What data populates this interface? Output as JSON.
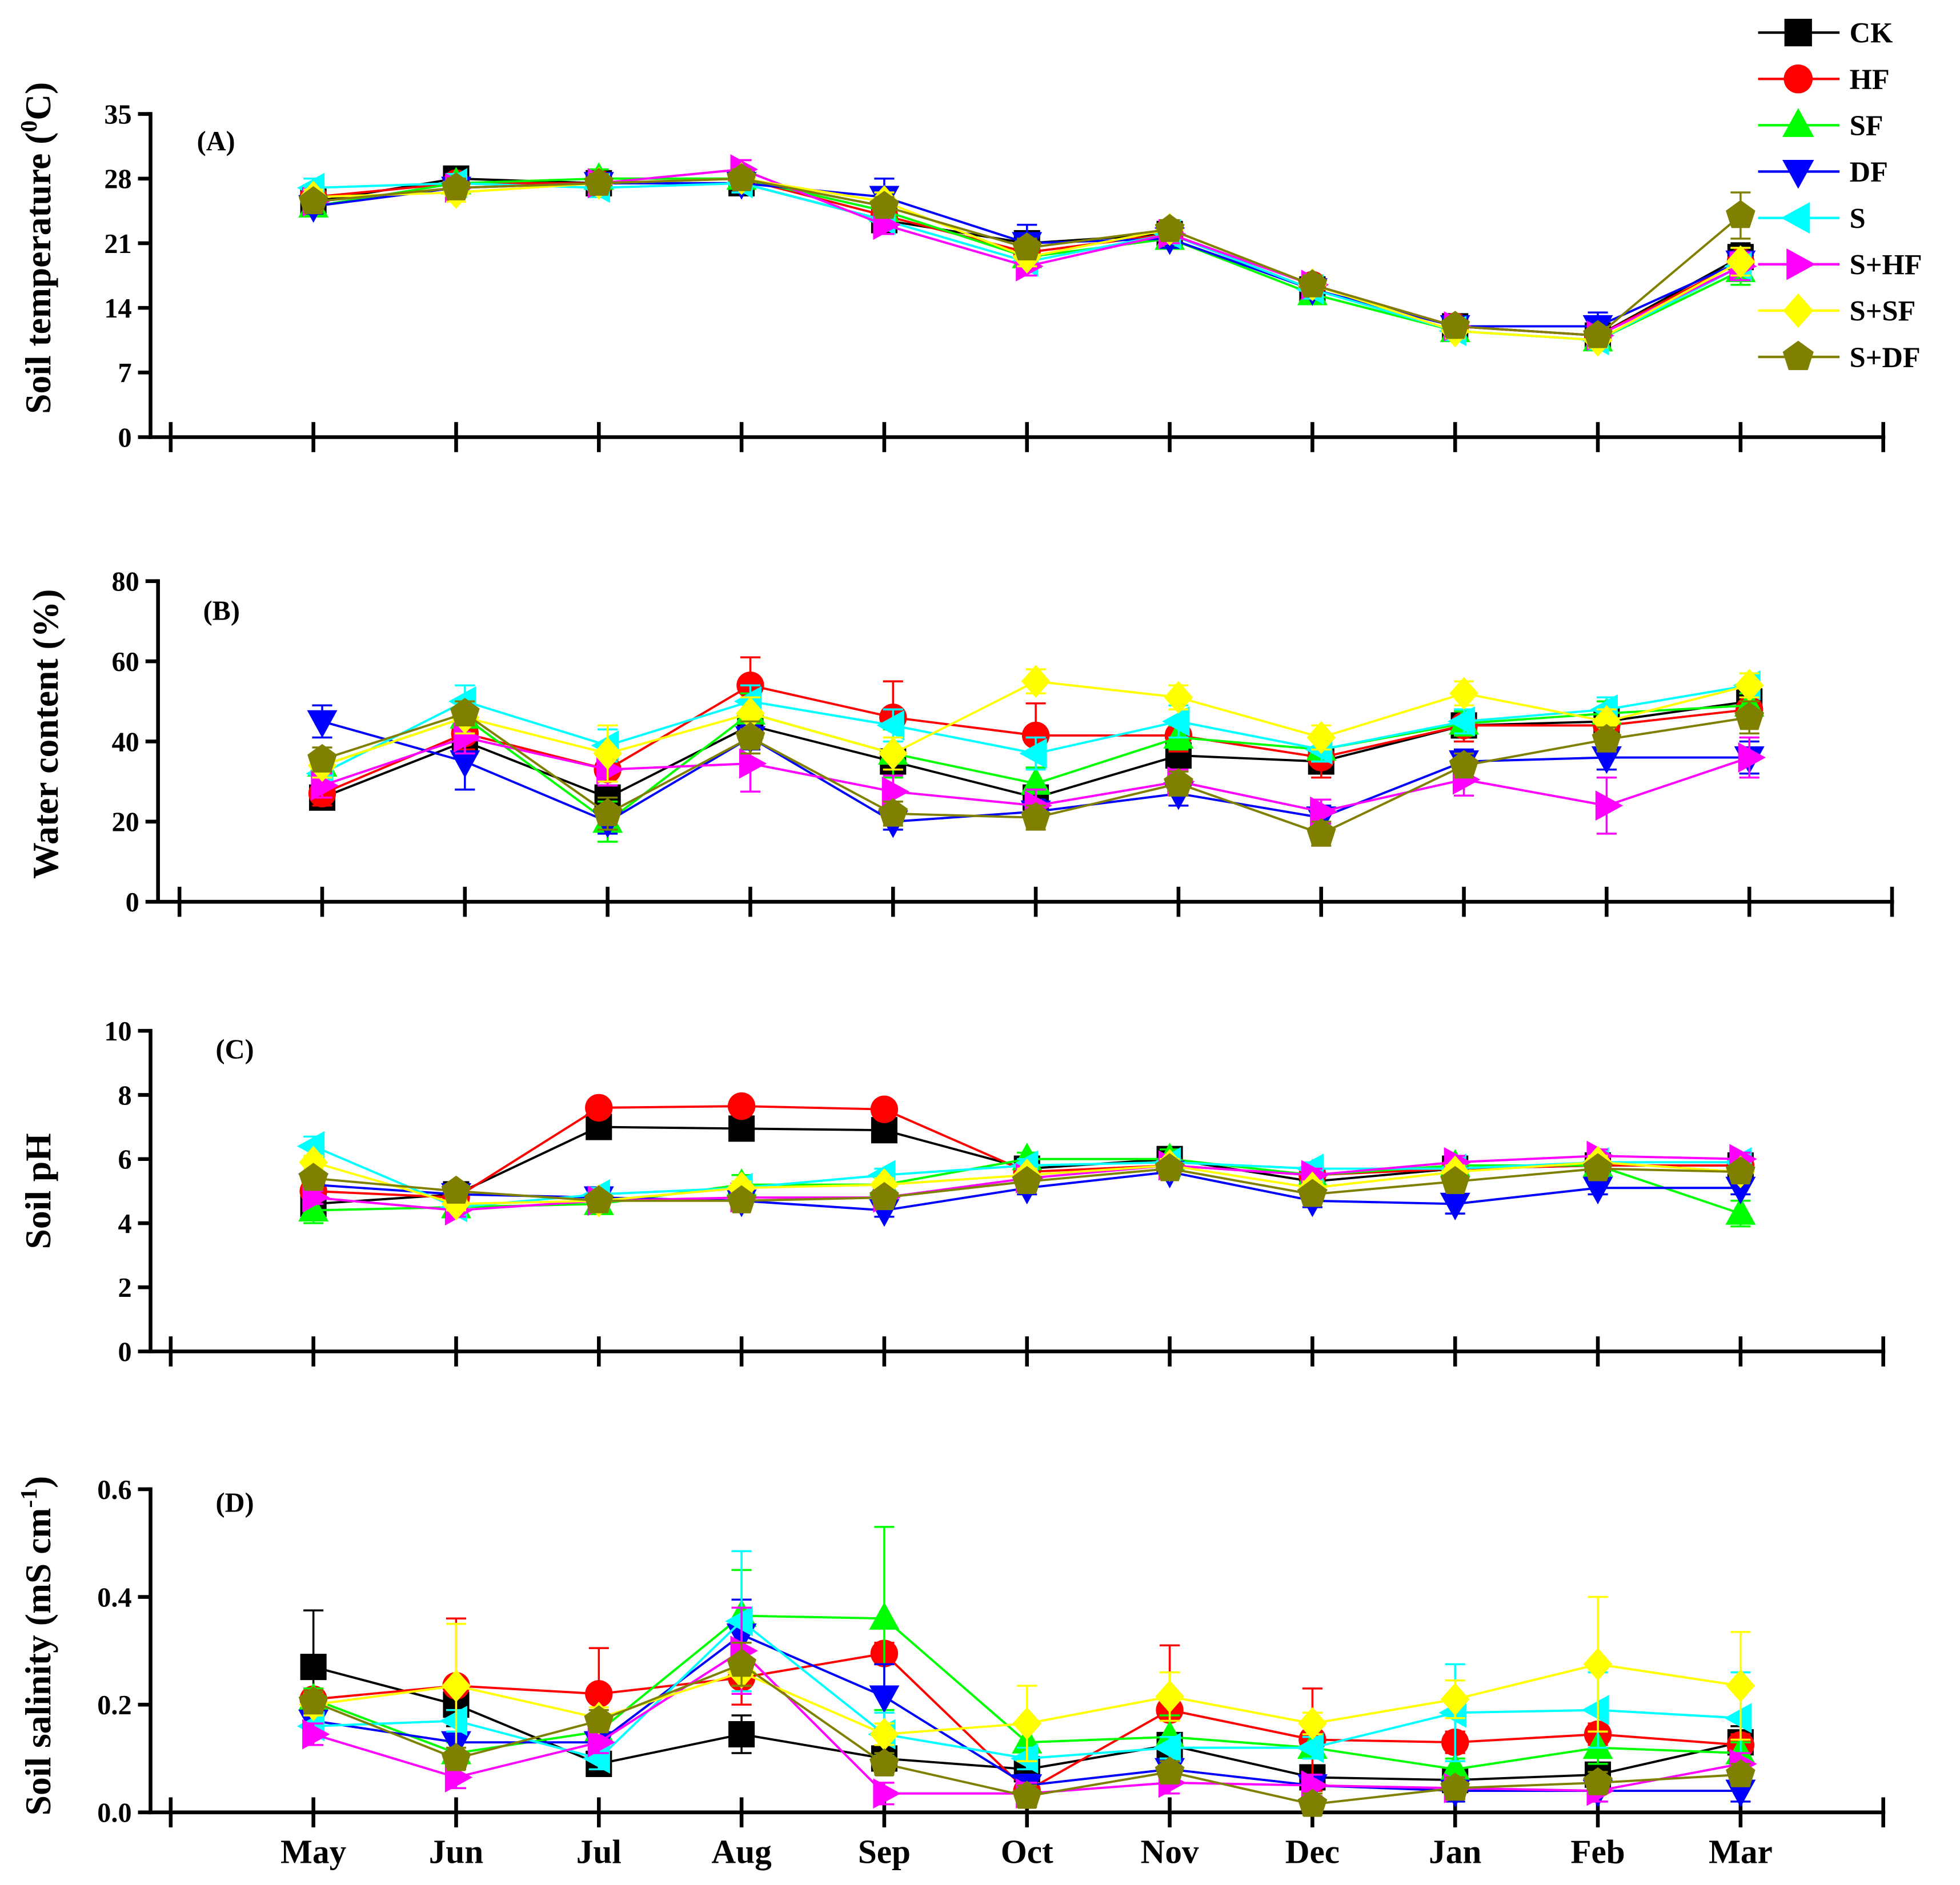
{
  "legend": {
    "entries": [
      {
        "name": "CK",
        "color": "#000000",
        "marker": "square"
      },
      {
        "name": "HF",
        "color": "#ff0000",
        "marker": "circle"
      },
      {
        "name": "SF",
        "color": "#00ff00",
        "marker": "triangle-up"
      },
      {
        "name": "DF",
        "color": "#0000ff",
        "marker": "triangle-down"
      },
      {
        "name": "S",
        "color": "#00ffff",
        "marker": "triangle-left"
      },
      {
        "name": "S+HF",
        "color": "#ff00ff",
        "marker": "triangle-right"
      },
      {
        "name": "S+SF",
        "color": "#ffff00",
        "marker": "diamond"
      },
      {
        "name": "S+DF",
        "color": "#808000",
        "marker": "pentagon"
      }
    ]
  },
  "chart_data": [
    {
      "type": "line",
      "panel_label": "(A)",
      "xlabel": "",
      "ylabel": [
        {
          "text": "Soil temperature ("
        },
        {
          "text": "0",
          "sup": true
        },
        {
          "text": "C)"
        }
      ],
      "ylim": [
        0,
        35
      ],
      "yticks": [
        0,
        7,
        14,
        21,
        28,
        35
      ],
      "ytick_labels": [
        "0",
        "7",
        "14",
        "21",
        "28",
        "35"
      ],
      "categories": [
        "May",
        "Jun",
        "Jul",
        "Aug",
        "Sep",
        "Oct",
        "Nov",
        "Dec",
        "Jan",
        "Feb",
        "Mar"
      ],
      "series": [
        {
          "name": "CK",
          "values": [
            25.5,
            28,
            27.5,
            27.5,
            23.5,
            21,
            22,
            16,
            12,
            11,
            19.5
          ],
          "errors": [
            0.8,
            1,
            1,
            1,
            1,
            1,
            0.8,
            1,
            0.8,
            1,
            1.5
          ]
        },
        {
          "name": "HF",
          "values": [
            26,
            27.5,
            27.5,
            28,
            24,
            20,
            22,
            16.5,
            12,
            11,
            19
          ],
          "errors": [
            0.8,
            0.8,
            1,
            1,
            1,
            1,
            0.8,
            1,
            0.8,
            0.8,
            1.5
          ]
        },
        {
          "name": "SF",
          "values": [
            25,
            27.5,
            28,
            28,
            24.5,
            19.5,
            21.5,
            15.5,
            11.5,
            10.5,
            18
          ],
          "errors": [
            0.8,
            0.8,
            1,
            1,
            1,
            1,
            0.8,
            1,
            0.8,
            0.8,
            1.5
          ]
        },
        {
          "name": "DF",
          "values": [
            25,
            27,
            27.5,
            27.5,
            26,
            21,
            21.5,
            16,
            12,
            12,
            19
          ],
          "errors": [
            0.8,
            0.8,
            1,
            1,
            2,
            2,
            1,
            1,
            0.8,
            1.5,
            1.5
          ]
        },
        {
          "name": "S",
          "values": [
            27,
            27.5,
            27,
            27.5,
            23.5,
            19,
            22,
            16,
            11.5,
            10.5,
            18.5
          ],
          "errors": [
            1,
            1,
            1,
            1,
            1,
            1,
            1,
            1,
            1,
            1,
            1.5
          ]
        },
        {
          "name": "S+HF",
          "values": [
            25.5,
            27,
            27.5,
            29,
            23,
            18.5,
            22,
            16.5,
            12,
            11,
            18.5
          ],
          "errors": [
            0.8,
            0.8,
            1,
            1,
            1,
            1,
            1,
            1,
            0.8,
            0.8,
            1.5
          ]
        },
        {
          "name": "S+SF",
          "values": [
            26,
            26.5,
            27.5,
            28,
            25.5,
            19.5,
            22.5,
            16.5,
            11.5,
            10.5,
            19
          ],
          "errors": [
            0.8,
            1,
            1,
            1,
            1,
            1,
            1,
            1,
            0.8,
            0.8,
            1.5
          ]
        },
        {
          "name": "S+DF",
          "values": [
            25.5,
            27,
            27.5,
            28,
            25,
            20.5,
            22.5,
            16.5,
            12,
            11,
            24
          ],
          "errors": [
            0.8,
            1,
            1,
            1,
            1,
            1,
            1,
            1,
            0.8,
            0.8,
            2.5
          ]
        }
      ]
    },
    {
      "type": "line",
      "panel_label": "(B)",
      "xlabel": "",
      "ylabel": [
        {
          "text": "Water content (%)"
        }
      ],
      "ylim": [
        0,
        80
      ],
      "yticks": [
        0,
        20,
        40,
        60,
        80
      ],
      "ytick_labels": [
        "0",
        "20",
        "40",
        "60",
        "80"
      ],
      "categories": [
        "May",
        "Jun",
        "Jul",
        "Aug",
        "Sep",
        "Oct",
        "Nov",
        "Dec",
        "Jan",
        "Feb",
        "Mar"
      ],
      "series": [
        {
          "name": "CK",
          "values": [
            26,
            40,
            26,
            44,
            35,
            26,
            36.5,
            35,
            44,
            45,
            50
          ],
          "errors": [
            2,
            3,
            2,
            3,
            3,
            3,
            2,
            3,
            3,
            3,
            3
          ]
        },
        {
          "name": "HF",
          "values": [
            27,
            42,
            33,
            54,
            46,
            41.5,
            41.5,
            36,
            44,
            44,
            48
          ],
          "errors": [
            3,
            4,
            3,
            7,
            9,
            8,
            4,
            5,
            4,
            4,
            3
          ]
        },
        {
          "name": "SF",
          "values": [
            34,
            46,
            20,
            47,
            37,
            29.5,
            41,
            38,
            44.5,
            47,
            49
          ],
          "errors": [
            3,
            4,
            5,
            5,
            6,
            4,
            3,
            3,
            3,
            3,
            3
          ]
        },
        {
          "name": "DF",
          "values": [
            45,
            35,
            20,
            41,
            20,
            22.5,
            27,
            21,
            35,
            36,
            36
          ],
          "errors": [
            4,
            7,
            3,
            3,
            2,
            3,
            3,
            3,
            3,
            3,
            4
          ]
        },
        {
          "name": "S",
          "values": [
            32,
            50,
            39,
            50,
            44,
            37,
            45,
            38,
            45,
            48,
            54
          ],
          "errors": [
            3,
            4,
            4,
            4,
            4,
            4,
            4,
            3,
            3,
            3,
            3
          ]
        },
        {
          "name": "S+HF",
          "values": [
            29,
            41,
            33,
            34.5,
            27.5,
            24,
            30,
            22.5,
            30.5,
            24,
            36
          ],
          "errors": [
            3,
            4,
            4,
            7,
            4,
            4,
            3,
            3,
            4,
            7,
            5
          ]
        },
        {
          "name": "S+SF",
          "values": [
            34,
            46,
            37,
            47,
            37,
            55,
            51,
            41,
            52,
            45,
            54
          ],
          "errors": [
            3,
            4,
            7,
            4,
            4,
            3,
            3,
            3,
            3,
            3,
            3
          ]
        },
        {
          "name": "S+DF",
          "values": [
            35.5,
            47,
            22,
            41,
            22,
            21,
            29.5,
            17,
            34,
            40.5,
            46
          ],
          "errors": [
            3,
            3,
            4,
            4,
            3,
            3,
            3,
            3,
            3,
            3,
            4
          ]
        }
      ]
    },
    {
      "type": "line",
      "panel_label": "(C)",
      "xlabel": "",
      "ylabel": [
        {
          "text": "Soil pH"
        }
      ],
      "ylim": [
        0,
        10
      ],
      "yticks": [
        0,
        2,
        4,
        6,
        8,
        10
      ],
      "ytick_labels": [
        "0",
        "2",
        "4",
        "6",
        "8",
        "10"
      ],
      "categories": [
        "May",
        "Jun",
        "Jul",
        "Aug",
        "Sep",
        "Oct",
        "Nov",
        "Dec",
        "Jan",
        "Feb",
        "Mar"
      ],
      "series": [
        {
          "name": "CK",
          "values": [
            4.6,
            4.9,
            7.0,
            6.95,
            6.9,
            5.7,
            6.0,
            5.3,
            5.7,
            5.8,
            5.8
          ],
          "errors": [
            0.3,
            0.2,
            0.2,
            0.2,
            0.2,
            0.2,
            0.2,
            0.2,
            0.2,
            0.2,
            0.2
          ]
        },
        {
          "name": "HF",
          "values": [
            5.0,
            4.8,
            7.6,
            7.65,
            7.55,
            5.6,
            5.8,
            5.5,
            5.7,
            5.8,
            5.8
          ],
          "errors": [
            0.2,
            0.2,
            0.2,
            0.2,
            0.2,
            0.2,
            0.2,
            0.2,
            0.2,
            0.2,
            0.2
          ]
        },
        {
          "name": "SF",
          "values": [
            4.4,
            4.5,
            4.6,
            5.2,
            5.2,
            6.0,
            6.0,
            5.5,
            5.8,
            5.8,
            4.3
          ],
          "errors": [
            0.4,
            0.2,
            0.3,
            0.3,
            0.2,
            0.2,
            0.3,
            0.2,
            0.2,
            0.2,
            0.4
          ]
        },
        {
          "name": "DF",
          "values": [
            5.2,
            4.9,
            4.8,
            4.7,
            4.4,
            5.1,
            5.6,
            4.7,
            4.6,
            5.1,
            5.1
          ],
          "errors": [
            0.2,
            0.2,
            0.2,
            0.2,
            0.2,
            0.2,
            0.2,
            0.2,
            0.3,
            0.2,
            0.2
          ]
        },
        {
          "name": "S",
          "values": [
            6.4,
            4.5,
            4.9,
            5.1,
            5.5,
            5.8,
            5.9,
            5.7,
            5.7,
            5.9,
            5.9
          ],
          "errors": [
            0.3,
            0.2,
            0.2,
            0.2,
            0.2,
            0.2,
            0.2,
            0.2,
            0.2,
            0.2,
            0.2
          ]
        },
        {
          "name": "S+HF",
          "values": [
            4.8,
            4.4,
            4.7,
            4.8,
            4.8,
            5.4,
            5.8,
            5.5,
            5.9,
            6.1,
            6.0
          ],
          "errors": [
            0.2,
            0.2,
            0.2,
            0.2,
            0.2,
            0.2,
            0.2,
            0.2,
            0.2,
            0.2,
            0.2
          ]
        },
        {
          "name": "S+SF",
          "values": [
            5.9,
            4.6,
            4.7,
            5.1,
            5.2,
            5.5,
            5.8,
            5.1,
            5.6,
            5.9,
            5.6
          ],
          "errors": [
            0.2,
            0.2,
            0.2,
            0.2,
            0.2,
            0.2,
            0.2,
            0.2,
            0.2,
            0.2,
            0.2
          ]
        },
        {
          "name": "S+DF",
          "values": [
            5.4,
            5.0,
            4.7,
            4.7,
            4.8,
            5.3,
            5.7,
            4.9,
            5.3,
            5.7,
            5.6
          ],
          "errors": [
            0.2,
            0.2,
            0.2,
            0.2,
            0.2,
            0.2,
            0.2,
            0.2,
            0.2,
            0.2,
            0.2
          ]
        }
      ]
    },
    {
      "type": "line",
      "panel_label": "(D)",
      "xlabel": "",
      "ylabel": [
        {
          "text": "Soil salinity (mS cm"
        },
        {
          "text": "-1",
          "sup": true
        },
        {
          "text": ")"
        }
      ],
      "ylim": [
        0,
        0.6
      ],
      "yticks": [
        0,
        0.2,
        0.4,
        0.6
      ],
      "ytick_labels": [
        "0.0",
        "0.2",
        "0.4",
        "0.6"
      ],
      "categories": [
        "May",
        "Jun",
        "Jul",
        "Aug",
        "Sep",
        "Oct",
        "Nov",
        "Dec",
        "Jan",
        "Feb",
        "Mar"
      ],
      "series": [
        {
          "name": "CK",
          "values": [
            0.27,
            0.2,
            0.09,
            0.145,
            0.1,
            0.08,
            0.125,
            0.065,
            0.06,
            0.07,
            0.13
          ],
          "errors": [
            0.105,
            0.04,
            0.02,
            0.035,
            0.02,
            0.02,
            0.02,
            0.02,
            0.02,
            0.02,
            0.03
          ]
        },
        {
          "name": "HF",
          "values": [
            0.21,
            0.235,
            0.22,
            0.25,
            0.295,
            0.04,
            0.19,
            0.135,
            0.13,
            0.145,
            0.125
          ],
          "errors": [
            0.02,
            0.125,
            0.085,
            0.05,
            0.02,
            0.02,
            0.12,
            0.095,
            0.02,
            0.02,
            0.02
          ]
        },
        {
          "name": "SF",
          "values": [
            0.21,
            0.11,
            0.15,
            0.365,
            0.36,
            0.13,
            0.14,
            0.12,
            0.08,
            0.12,
            0.11
          ],
          "errors": [
            0.02,
            0.02,
            0.02,
            0.085,
            0.17,
            0.03,
            0.04,
            0.02,
            0.02,
            0.03,
            0.02
          ]
        },
        {
          "name": "DF",
          "values": [
            0.17,
            0.13,
            0.13,
            0.33,
            0.215,
            0.05,
            0.08,
            0.05,
            0.04,
            0.04,
            0.04
          ],
          "errors": [
            0.02,
            0.02,
            0.02,
            0.065,
            0.06,
            0.02,
            0.02,
            0.02,
            0.02,
            0.02,
            0.02
          ]
        },
        {
          "name": "S",
          "values": [
            0.16,
            0.17,
            0.1,
            0.355,
            0.145,
            0.1,
            0.12,
            0.12,
            0.185,
            0.19,
            0.175
          ],
          "errors": [
            0.02,
            0.02,
            0.02,
            0.13,
            0.04,
            0.02,
            0.02,
            0.02,
            0.09,
            0.07,
            0.085
          ]
        },
        {
          "name": "S+HF",
          "values": [
            0.145,
            0.065,
            0.13,
            0.3,
            0.035,
            0.035,
            0.055,
            0.05,
            0.045,
            0.04,
            0.09
          ],
          "errors": [
            0.02,
            0.02,
            0.02,
            0.08,
            0.02,
            0.02,
            0.02,
            0.02,
            0.02,
            0.02,
            0.02
          ]
        },
        {
          "name": "S+SF",
          "values": [
            0.2,
            0.235,
            0.175,
            0.26,
            0.145,
            0.165,
            0.215,
            0.165,
            0.21,
            0.275,
            0.235
          ],
          "errors": [
            0.02,
            0.115,
            0.02,
            0.025,
            0.02,
            0.07,
            0.045,
            0.02,
            0.035,
            0.125,
            0.1
          ]
        },
        {
          "name": "S+DF",
          "values": [
            0.205,
            0.1,
            0.17,
            0.275,
            0.09,
            0.03,
            0.075,
            0.015,
            0.045,
            0.055,
            0.07
          ],
          "errors": [
            0.02,
            0.02,
            0.02,
            0.04,
            0.02,
            0.02,
            0.02,
            0.02,
            0.02,
            0.02,
            0.02
          ]
        }
      ]
    }
  ]
}
